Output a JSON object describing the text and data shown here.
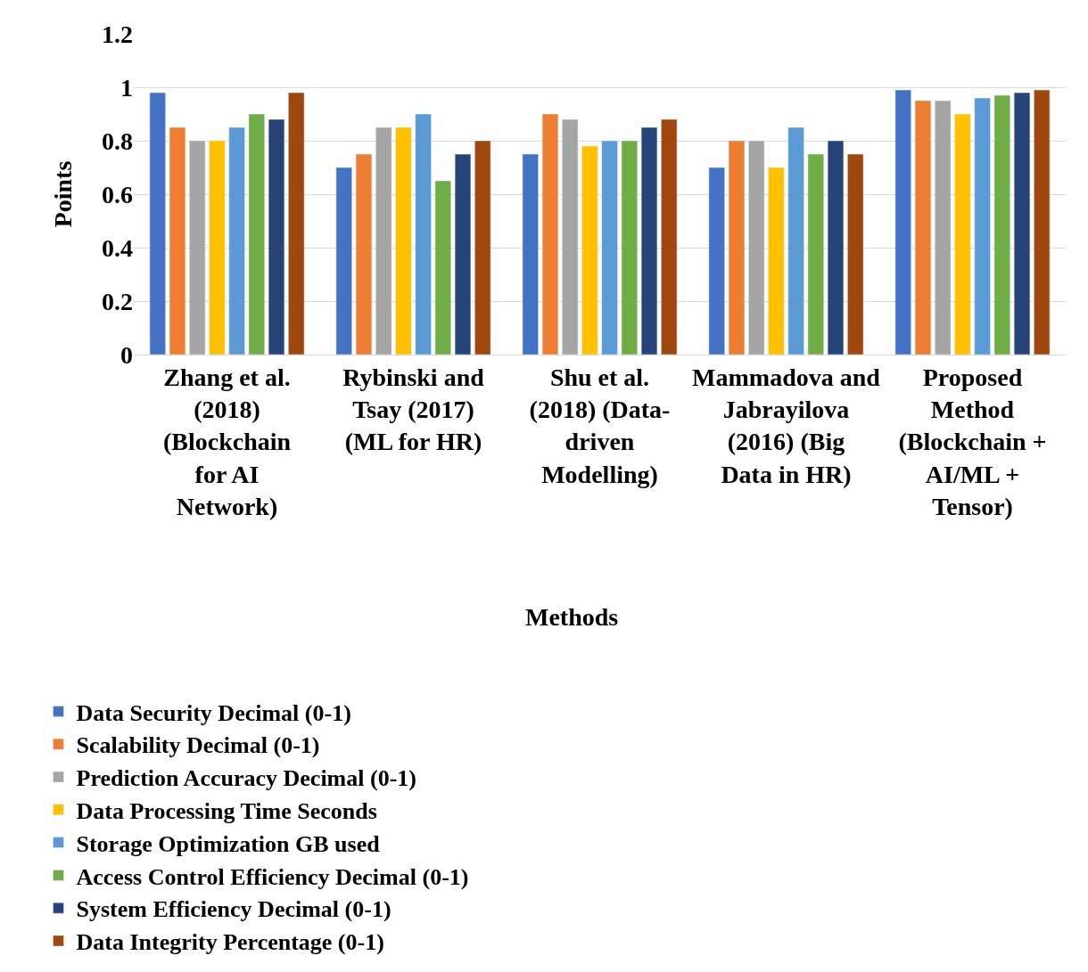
{
  "chart_data": {
    "type": "bar",
    "xlabel": "Methods",
    "ylabel": "Points",
    "categories": [
      "Zhang et al. (2018) (Blockchain for AI Network)",
      "Rybinski and Tsay (2017) (ML for HR)",
      "Shu et al. (2018) (Data-driven Modelling)",
      "Mammadova and Jabrayilova (2016) (Big Data in HR)",
      "Proposed Method (Blockchain + AI/ML + Tensor)"
    ],
    "series": [
      {
        "name": "Data Security Decimal (0-1)",
        "color": "#4472c4",
        "values": [
          0.98,
          0.7,
          0.75,
          0.7,
          0.99
        ]
      },
      {
        "name": "Scalability Decimal (0-1)",
        "color": "#ed7d31",
        "values": [
          0.85,
          0.75,
          0.9,
          0.8,
          0.95
        ]
      },
      {
        "name": "Prediction Accuracy Decimal (0-1)",
        "color": "#a5a5a5",
        "values": [
          0.8,
          0.85,
          0.88,
          0.8,
          0.95
        ]
      },
      {
        "name": "Data Processing Time Seconds",
        "color": "#ffc000",
        "values": [
          0.8,
          0.85,
          0.78,
          0.7,
          0.9
        ]
      },
      {
        "name": "Storage Optimization GB used",
        "color": "#5b9bd5",
        "values": [
          0.85,
          0.9,
          0.8,
          0.85,
          0.96
        ]
      },
      {
        "name": "Access Control Efficiency Decimal (0-1)",
        "color": "#70ad47",
        "values": [
          0.9,
          0.65,
          0.8,
          0.75,
          0.97
        ]
      },
      {
        "name": "System Efficiency Decimal (0-1)",
        "color": "#264478",
        "values": [
          0.88,
          0.75,
          0.85,
          0.8,
          0.98
        ]
      },
      {
        "name": "Data Integrity Percentage (0-1)",
        "color": "#9e480e",
        "values": [
          0.98,
          0.8,
          0.88,
          0.75,
          0.99
        ]
      }
    ],
    "ylim": [
      0,
      1.2
    ],
    "yticks": [
      0,
      0.2,
      0.4,
      0.6,
      0.8,
      1,
      1.2
    ],
    "grid": "y",
    "legend": "bottom"
  }
}
